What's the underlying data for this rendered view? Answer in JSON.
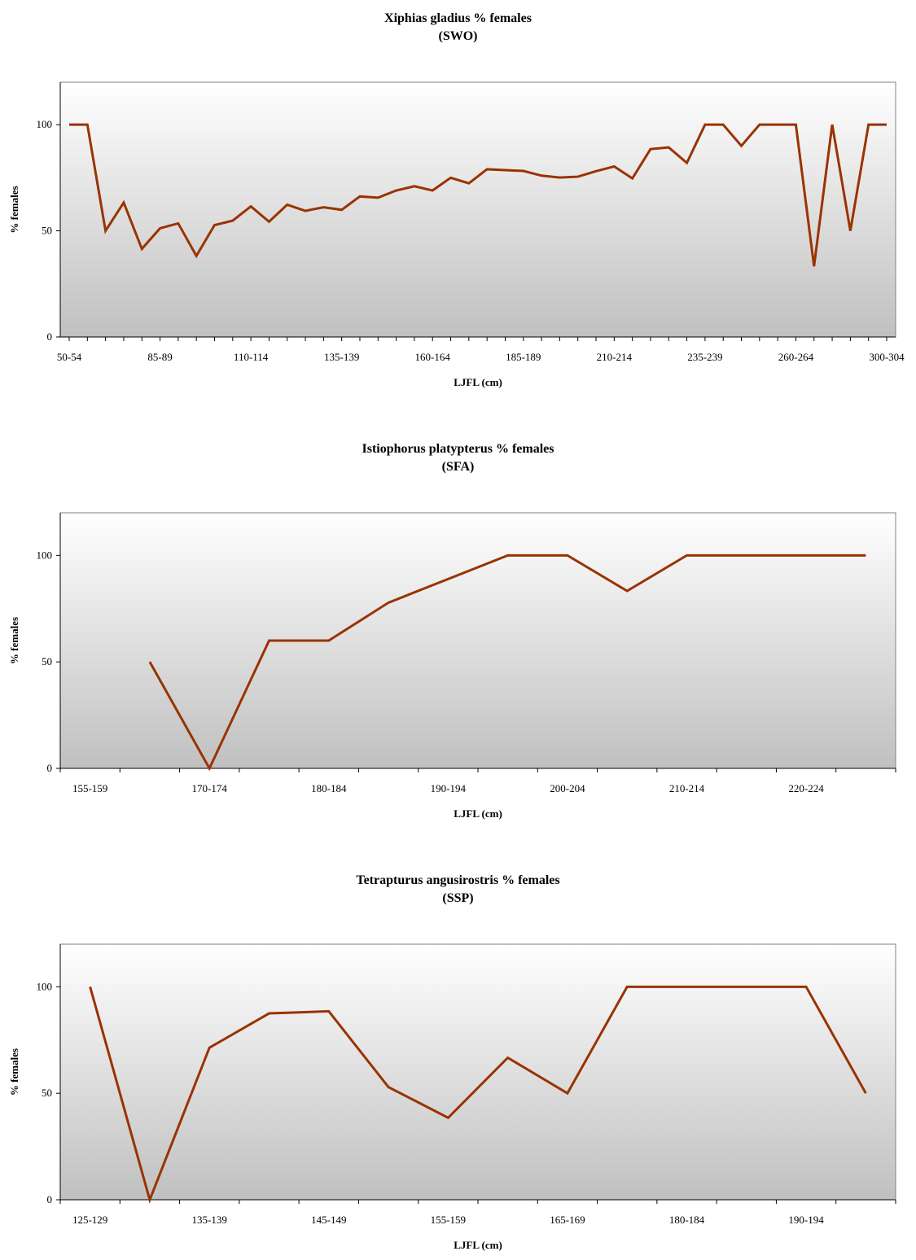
{
  "chart_data": [
    {
      "type": "line",
      "title": "Xiphias gladius % females",
      "subtitle": "(SWO)",
      "xlabel": "LJFL (cm)",
      "ylabel": "% females",
      "ylim": [
        0,
        120
      ],
      "yticks": [
        0,
        50,
        100
      ],
      "grid": false,
      "color": "#993300",
      "x_tick_labels": [
        "50-54",
        "85-89",
        "110-114",
        "135-139",
        "160-164",
        "185-189",
        "210-214",
        "235-239",
        "260-264",
        "300-304"
      ],
      "series": [
        {
          "values": [
            100,
            100,
            50,
            63.3,
            41.5,
            51.2,
            53.5,
            38.2,
            52.7,
            54.8,
            61.5,
            54.3,
            62.3,
            59.4,
            61.1,
            59.9,
            66.2,
            65.6,
            69,
            71,
            69,
            75,
            72.4,
            79,
            78.6,
            78.2,
            76,
            75.1,
            75.5,
            78.1,
            80.3,
            74.7,
            88.5,
            89.3,
            82,
            100,
            100,
            90,
            100,
            100,
            100,
            33.3,
            100,
            50,
            100,
            100
          ]
        }
      ]
    },
    {
      "type": "line",
      "title": "Istiophorus platypterus % females",
      "subtitle": "(SFA)",
      "xlabel": "LJFL (cm)",
      "ylabel": "% females",
      "ylim": [
        0,
        120
      ],
      "yticks": [
        0,
        50,
        100
      ],
      "grid": false,
      "color": "#993300",
      "categories": [
        "155-159",
        "",
        "170-174",
        "",
        "180-184",
        "",
        "190-194",
        "",
        "200-204",
        "",
        "210-214",
        "",
        "220-224",
        ""
      ],
      "series": [
        {
          "values": [
            null,
            50,
            0,
            60,
            60,
            77.8,
            88.9,
            100,
            100,
            83.3,
            100,
            100,
            100,
            100
          ]
        }
      ]
    },
    {
      "type": "line",
      "title": "Tetrapturus angusirostris % females",
      "subtitle": "(SSP)",
      "xlabel": "LJFL (cm)",
      "ylabel": "% females",
      "ylim": [
        0,
        120
      ],
      "yticks": [
        0,
        50,
        100
      ],
      "grid": false,
      "color": "#993300",
      "categories": [
        "125-129",
        "",
        "135-139",
        "",
        "145-149",
        "",
        "155-159",
        "",
        "165-169",
        "",
        "180-184",
        "",
        "190-194",
        ""
      ],
      "series": [
        {
          "values": [
            100,
            0,
            71.4,
            87.5,
            88.5,
            52.9,
            38.5,
            66.7,
            50,
            100,
            100,
            100,
            100,
            50
          ]
        }
      ]
    }
  ]
}
